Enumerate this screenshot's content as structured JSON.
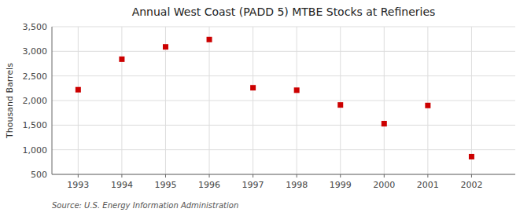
{
  "chart_data": {
    "type": "scatter",
    "title": "Annual West Coast (PADD 5) MTBE Stocks at Refineries",
    "ylabel": "Thousand Barrels",
    "source": "Source: U.S. Energy Information Administration",
    "x": [
      1993,
      1994,
      1995,
      1996,
      1997,
      1998,
      1999,
      2000,
      2001,
      2002
    ],
    "values": [
      2220,
      2840,
      3090,
      3240,
      2260,
      2210,
      1910,
      1530,
      1900,
      860
    ],
    "color": "#cc0000",
    "marker": "square",
    "grid": true,
    "xlim": [
      1992.4,
      2003.0
    ],
    "ylim": [
      500,
      3500
    ],
    "xticks": [
      1993,
      1994,
      1995,
      1996,
      1997,
      1998,
      1999,
      2000,
      2001,
      2002
    ],
    "yticks": [
      500,
      {
        "value": 1000,
        "label": "1,000"
      },
      {
        "value": 1500,
        "label": "1,500"
      },
      {
        "value": 2000,
        "label": "2,000"
      },
      {
        "value": 2500,
        "label": "2,500"
      },
      {
        "value": 3000,
        "label": "3,000"
      },
      {
        "value": 3500,
        "label": "3,500"
      }
    ]
  }
}
